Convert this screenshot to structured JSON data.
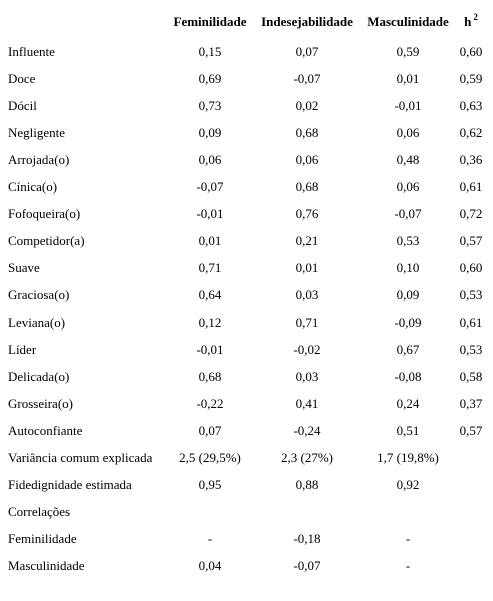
{
  "header": {
    "col1": "Feminilidade",
    "col2": "Indesejabilidade",
    "col3": "Masculinidade",
    "col4_base": "h",
    "col4_sup": "2"
  },
  "rows": [
    {
      "label": "Influente",
      "v1": "0,15",
      "v2": "0,07",
      "v3": "0,59",
      "v4": "0,60"
    },
    {
      "label": "Doce",
      "v1": "0,69",
      "v2": "-0,07",
      "v3": "0,01",
      "v4": "0,59"
    },
    {
      "label": "Dócil",
      "v1": "0,73",
      "v2": "0,02",
      "v3": "-0,01",
      "v4": "0,63"
    },
    {
      "label": "Negligente",
      "v1": "0,09",
      "v2": "0,68",
      "v3": "0,06",
      "v4": "0,62"
    },
    {
      "label": "Arrojada(o)",
      "v1": "0,06",
      "v2": "0,06",
      "v3": "0,48",
      "v4": "0,36"
    },
    {
      "label": "Cínica(o)",
      "v1": "-0,07",
      "v2": "0,68",
      "v3": "0,06",
      "v4": "0,61"
    },
    {
      "label": "Fofoqueira(o)",
      "v1": "-0,01",
      "v2": "0,76",
      "v3": "-0,07",
      "v4": "0,72"
    },
    {
      "label": "Competidor(a)",
      "v1": "0,01",
      "v2": "0,21",
      "v3": "0,53",
      "v4": "0,57"
    },
    {
      "label": "Suave",
      "v1": "0,71",
      "v2": "0,01",
      "v3": "0,10",
      "v4": "0,60"
    },
    {
      "label": "Graciosa(o)",
      "v1": "0,64",
      "v2": "0,03",
      "v3": "0,09",
      "v4": "0,53"
    },
    {
      "label": "Leviana(o)",
      "v1": "0,12",
      "v2": "0,71",
      "v3": "-0,09",
      "v4": "0,61"
    },
    {
      "label": "Líder",
      "v1": "-0,01",
      "v2": "-0,02",
      "v3": "0,67",
      "v4": "0,53"
    },
    {
      "label": "Delicada(o)",
      "v1": "0,68",
      "v2": "0,03",
      "v3": "-0,08",
      "v4": "0,58"
    },
    {
      "label": "Grosseira(o)",
      "v1": "-0,22",
      "v2": "0,41",
      "v3": "0,24",
      "v4": "0,37"
    },
    {
      "label": "Autoconfiante",
      "v1": "0,07",
      "v2": "-0,24",
      "v3": "0,51",
      "v4": "0,57"
    },
    {
      "label": "Variância comum explicada",
      "v1": "2,5 (29,5%)",
      "v2": "2,3 (27%)",
      "v3": "1,7 (19,8%)",
      "v4": ""
    },
    {
      "label": "Fidedignidade estimada",
      "v1": "0,95",
      "v2": "0,88",
      "v3": "0,92",
      "v4": ""
    },
    {
      "label": "Correlações",
      "v1": "",
      "v2": "",
      "v3": "",
      "v4": ""
    },
    {
      "label": "Feminilidade",
      "v1": "-",
      "v2": "-0,18",
      "v3": "-",
      "v4": ""
    },
    {
      "label": "Masculinidade",
      "v1": "0,04",
      "v2": "-0,07",
      "v3": "-",
      "v4": ""
    }
  ]
}
